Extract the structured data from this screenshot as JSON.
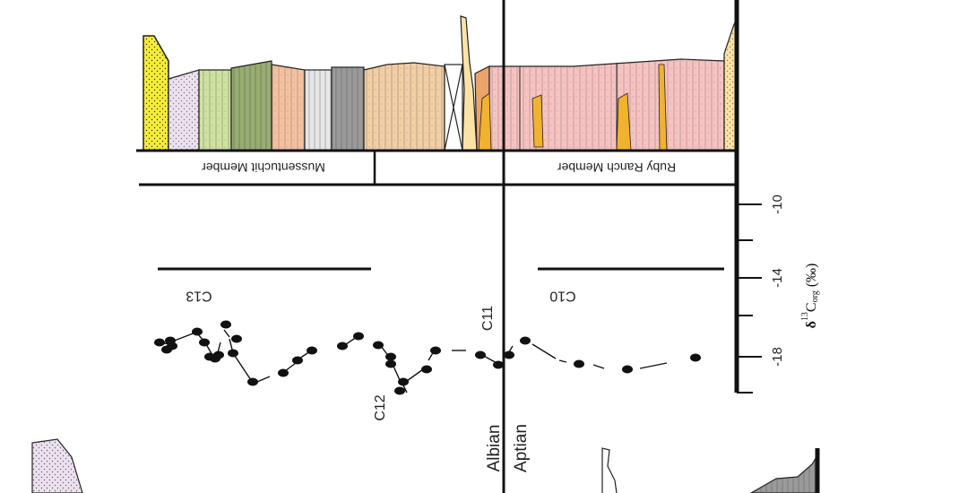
{
  "members": {
    "mussentuchit": "Mussentuchit Member",
    "ruby_ranch": "Ruby Ranch Member"
  },
  "stages": {
    "albian": "Albian",
    "aptian": "Aptian"
  },
  "segments": {
    "c10": "C10",
    "c11": "C11",
    "c12": "C12",
    "c13": "C13"
  },
  "axis": {
    "label_main": "δ",
    "label_sup": "13",
    "label_C": "C",
    "label_sub": "org",
    "label_unit": " (‰)",
    "ticks": [
      "-10",
      "-14",
      "-18"
    ]
  },
  "colors": {
    "yellow_sand": "#f5ec3c",
    "lavender": "#ece1ee",
    "light_green": "#cfe3a0",
    "olive_green": "#97ad71",
    "salmon": "#f4c1a0",
    "light_gray": "#e6e6e6",
    "dark_gray": "#9a9a9a",
    "tan": "#f3cfa6",
    "orange": "#eaa36a",
    "pink": "#f6c3c1",
    "cream": "#fbe3a6",
    "gold": "#f1b22e"
  }
}
